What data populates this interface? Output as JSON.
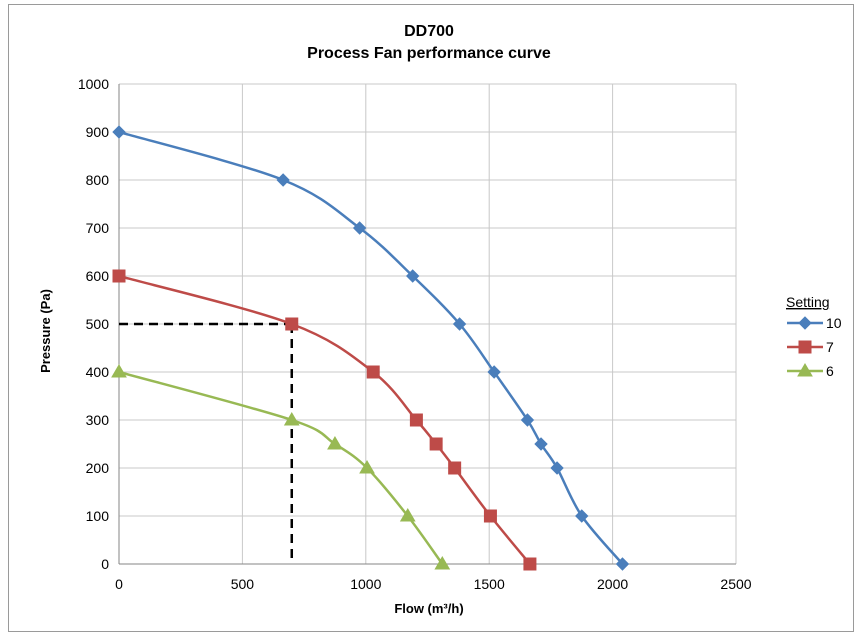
{
  "chart_data": {
    "type": "line",
    "title": "DD700",
    "subtitle": "Process Fan performance curve",
    "xlabel": "Flow (m³/h)",
    "ylabel": "Pressure (Pa)",
    "xlim": [
      0,
      2500
    ],
    "ylim": [
      0,
      1000
    ],
    "x_ticks": [
      "0",
      "500",
      "1000",
      "1500",
      "2000",
      "2500"
    ],
    "y_ticks": [
      "0",
      "100",
      "200",
      "300",
      "400",
      "500",
      "600",
      "700",
      "800",
      "900",
      "1000"
    ],
    "grid": true,
    "legend_title": "Setting",
    "legend_position": "right",
    "series": [
      {
        "name": "10",
        "color": "#4a7ebb",
        "marker": "diamond",
        "points": [
          [
            0,
            900
          ],
          [
            665,
            800
          ],
          [
            975,
            700
          ],
          [
            1190,
            600
          ],
          [
            1380,
            500
          ],
          [
            1520,
            400
          ],
          [
            1655,
            300
          ],
          [
            1710,
            250
          ],
          [
            1775,
            200
          ],
          [
            1875,
            100
          ],
          [
            2040,
            0
          ]
        ]
      },
      {
        "name": "7",
        "color": "#be4b48",
        "marker": "square",
        "points": [
          [
            0,
            600
          ],
          [
            700,
            500
          ],
          [
            1030,
            400
          ],
          [
            1205,
            300
          ],
          [
            1285,
            250
          ],
          [
            1360,
            200
          ],
          [
            1505,
            100
          ],
          [
            1665,
            0
          ]
        ]
      },
      {
        "name": "6",
        "color": "#98b954",
        "marker": "triangle",
        "points": [
          [
            0,
            400
          ],
          [
            700,
            300
          ],
          [
            875,
            250
          ],
          [
            1005,
            200
          ],
          [
            1170,
            100
          ],
          [
            1310,
            0
          ]
        ]
      }
    ],
    "reference_lines": {
      "style": "dashed",
      "color": "#000000",
      "x": 700,
      "y": 500
    }
  }
}
